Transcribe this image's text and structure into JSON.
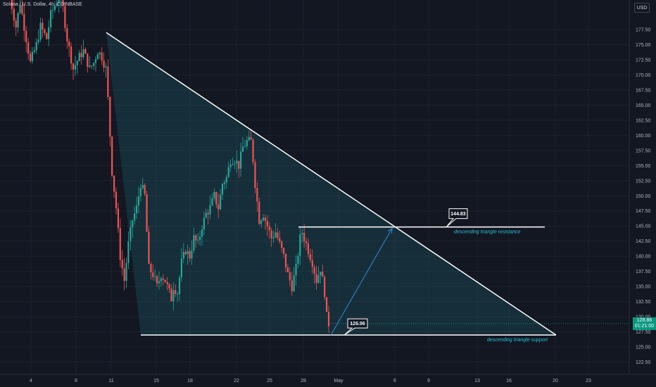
{
  "header": {
    "title": "Solana / U.S. Dollar, 4h, COINBASE",
    "currency": "USD"
  },
  "current_price": {
    "value": "128.86",
    "countdown": "01:21:00"
  },
  "colors": {
    "up": "#26a69a",
    "down": "#ef5350",
    "background": "#131722",
    "annotation": "#26c6da",
    "arrow": "#2962ff"
  },
  "chart_data": {
    "type": "candlestick",
    "symbol": "SOLUSD",
    "timeframe": "4h",
    "ylim": [
      121,
      185
    ],
    "y_ticks": [
      "177.50",
      "175.00",
      "172.50",
      "170.00",
      "167.50",
      "165.00",
      "162.50",
      "160.00",
      "157.50",
      "155.00",
      "152.50",
      "150.00",
      "147.50",
      "145.00",
      "142.50",
      "140.00",
      "137.50",
      "135.00",
      "132.50",
      "130.00",
      "127.50",
      "125.00",
      "122.50"
    ],
    "x_ticks": [
      "4",
      "8",
      "11",
      "15",
      "18",
      "22",
      "25",
      "28",
      "May",
      "6",
      "9",
      "13",
      "16",
      "20",
      "23"
    ],
    "price_path": [
      [
        0,
        183
      ],
      [
        3,
        178
      ],
      [
        5,
        182
      ],
      [
        8,
        176
      ],
      [
        10,
        172
      ],
      [
        13,
        175
      ],
      [
        15,
        178
      ],
      [
        18,
        176
      ],
      [
        20,
        180
      ],
      [
        24,
        183
      ],
      [
        26,
        181
      ],
      [
        28,
        176
      ],
      [
        31,
        171
      ],
      [
        34,
        173
      ],
      [
        36,
        174
      ],
      [
        39,
        171
      ],
      [
        41,
        172
      ],
      [
        43,
        174
      ],
      [
        45,
        173
      ],
      [
        47,
        171
      ],
      [
        48,
        166
      ],
      [
        50,
        154
      ],
      [
        52,
        148
      ],
      [
        54,
        140
      ],
      [
        56,
        136
      ],
      [
        58,
        142
      ],
      [
        60,
        146
      ],
      [
        62,
        148
      ],
      [
        64,
        152
      ],
      [
        66,
        150
      ],
      [
        68,
        138
      ],
      [
        70,
        137
      ],
      [
        72,
        135
      ],
      [
        74,
        137
      ],
      [
        76,
        136
      ],
      [
        78,
        134
      ],
      [
        79,
        133
      ],
      [
        80,
        135
      ],
      [
        82,
        134
      ],
      [
        84,
        139
      ],
      [
        86,
        141
      ],
      [
        88,
        140
      ],
      [
        90,
        143
      ],
      [
        92,
        142
      ],
      [
        94,
        145
      ],
      [
        96,
        147
      ],
      [
        98,
        148
      ],
      [
        100,
        150
      ],
      [
        102,
        148
      ],
      [
        104,
        152
      ],
      [
        106,
        153
      ],
      [
        108,
        156
      ],
      [
        110,
        156
      ],
      [
        112,
        155
      ],
      [
        114,
        158
      ],
      [
        116,
        159
      ],
      [
        118,
        159
      ],
      [
        119,
        156
      ],
      [
        120,
        152
      ],
      [
        121,
        149
      ],
      [
        122,
        146
      ],
      [
        124,
        147
      ],
      [
        126,
        145
      ],
      [
        128,
        143
      ],
      [
        130,
        144
      ],
      [
        132,
        142
      ],
      [
        134,
        140
      ],
      [
        136,
        137
      ],
      [
        138,
        135
      ],
      [
        140,
        138
      ],
      [
        142,
        143
      ],
      [
        143,
        144
      ],
      [
        144,
        143
      ],
      [
        146,
        141
      ],
      [
        148,
        139
      ],
      [
        150,
        136
      ],
      [
        151,
        137
      ],
      [
        152,
        138
      ],
      [
        153,
        136
      ],
      [
        154,
        134
      ],
      [
        155,
        130
      ],
      [
        156,
        128.86
      ]
    ],
    "support_line": {
      "label": "descending triangle support",
      "price": "126.96"
    },
    "resistance_line": {
      "label": "descending triangle resistance",
      "price": "144.83"
    },
    "triangle_top": {
      "from_value": 177,
      "to_value": 127
    }
  }
}
